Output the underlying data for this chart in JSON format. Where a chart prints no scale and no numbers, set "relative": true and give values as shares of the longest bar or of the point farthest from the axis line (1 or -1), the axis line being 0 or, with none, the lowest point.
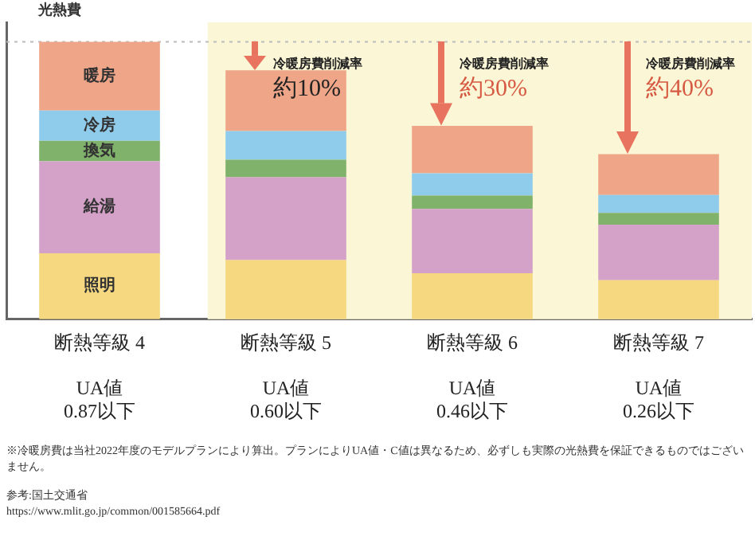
{
  "chart_data": {
    "type": "bar",
    "stacked": true,
    "relative": true,
    "ylabel": "光熱費",
    "categories": [
      "断熱等級 4\n\nUA値\n0.87以下",
      "断熱等級 5\n\nUA値\n0.60以下",
      "断熱等級 6\n\nUA値\n0.46以下",
      "断熱等級 7\n\nUA値\n0.26以下"
    ],
    "series": [
      {
        "name": "照明",
        "color": "#f5d880",
        "values": [
          0.238,
          0.213,
          0.166,
          0.141
        ]
      },
      {
        "name": "給湯",
        "color": "#d4a1c9",
        "values": [
          0.331,
          0.299,
          0.232,
          0.2
        ]
      },
      {
        "name": "換気",
        "color": "#80b26c",
        "values": [
          0.074,
          0.063,
          0.048,
          0.042
        ]
      },
      {
        "name": "冷房",
        "color": "#8fcbea",
        "values": [
          0.109,
          0.103,
          0.08,
          0.065
        ]
      },
      {
        "name": "暖房",
        "color": "#eea588",
        "values": [
          0.248,
          0.219,
          0.171,
          0.147
        ]
      }
    ],
    "ref_lines": [
      {
        "axis": "y",
        "value": 1,
        "color": "#bbbbbb",
        "line_style": "dotted"
      }
    ],
    "bands": [
      {
        "axis": "x",
        "from": "断熱等級 5\n\nUA値\n0.60以下",
        "to": "断熱等級 7\n\nUA値\n0.26以下",
        "color": "#fbf6d5"
      }
    ],
    "annotations": [
      "冷暖房費削減率",
      {
        "text": "約10%",
        "x": "断熱等級 5\n\nUA値\n0.60以下",
        "y": 0.897
      },
      "冷暖房費削減率",
      {
        "text": "約30%",
        "x": "断熱等級 6\n\nUA値\n0.46以下",
        "y": 0.697
      },
      "冷暖房費削減率",
      {
        "text": "約40%",
        "x": "断熱等級 7\n\nUA値\n0.26以下",
        "y": 0.595
      },
      "※冷暖房費は当社2022年度のモデルプランにより算出。プランによりUA値・C値は異なるため、必ずしも実際の光熱費を保証できるものではございません。",
      "参考:国土交通省",
      "https://www.mlit.go.jp/common/001585664.pdf"
    ],
    "grid": false,
    "legend": false
  }
}
